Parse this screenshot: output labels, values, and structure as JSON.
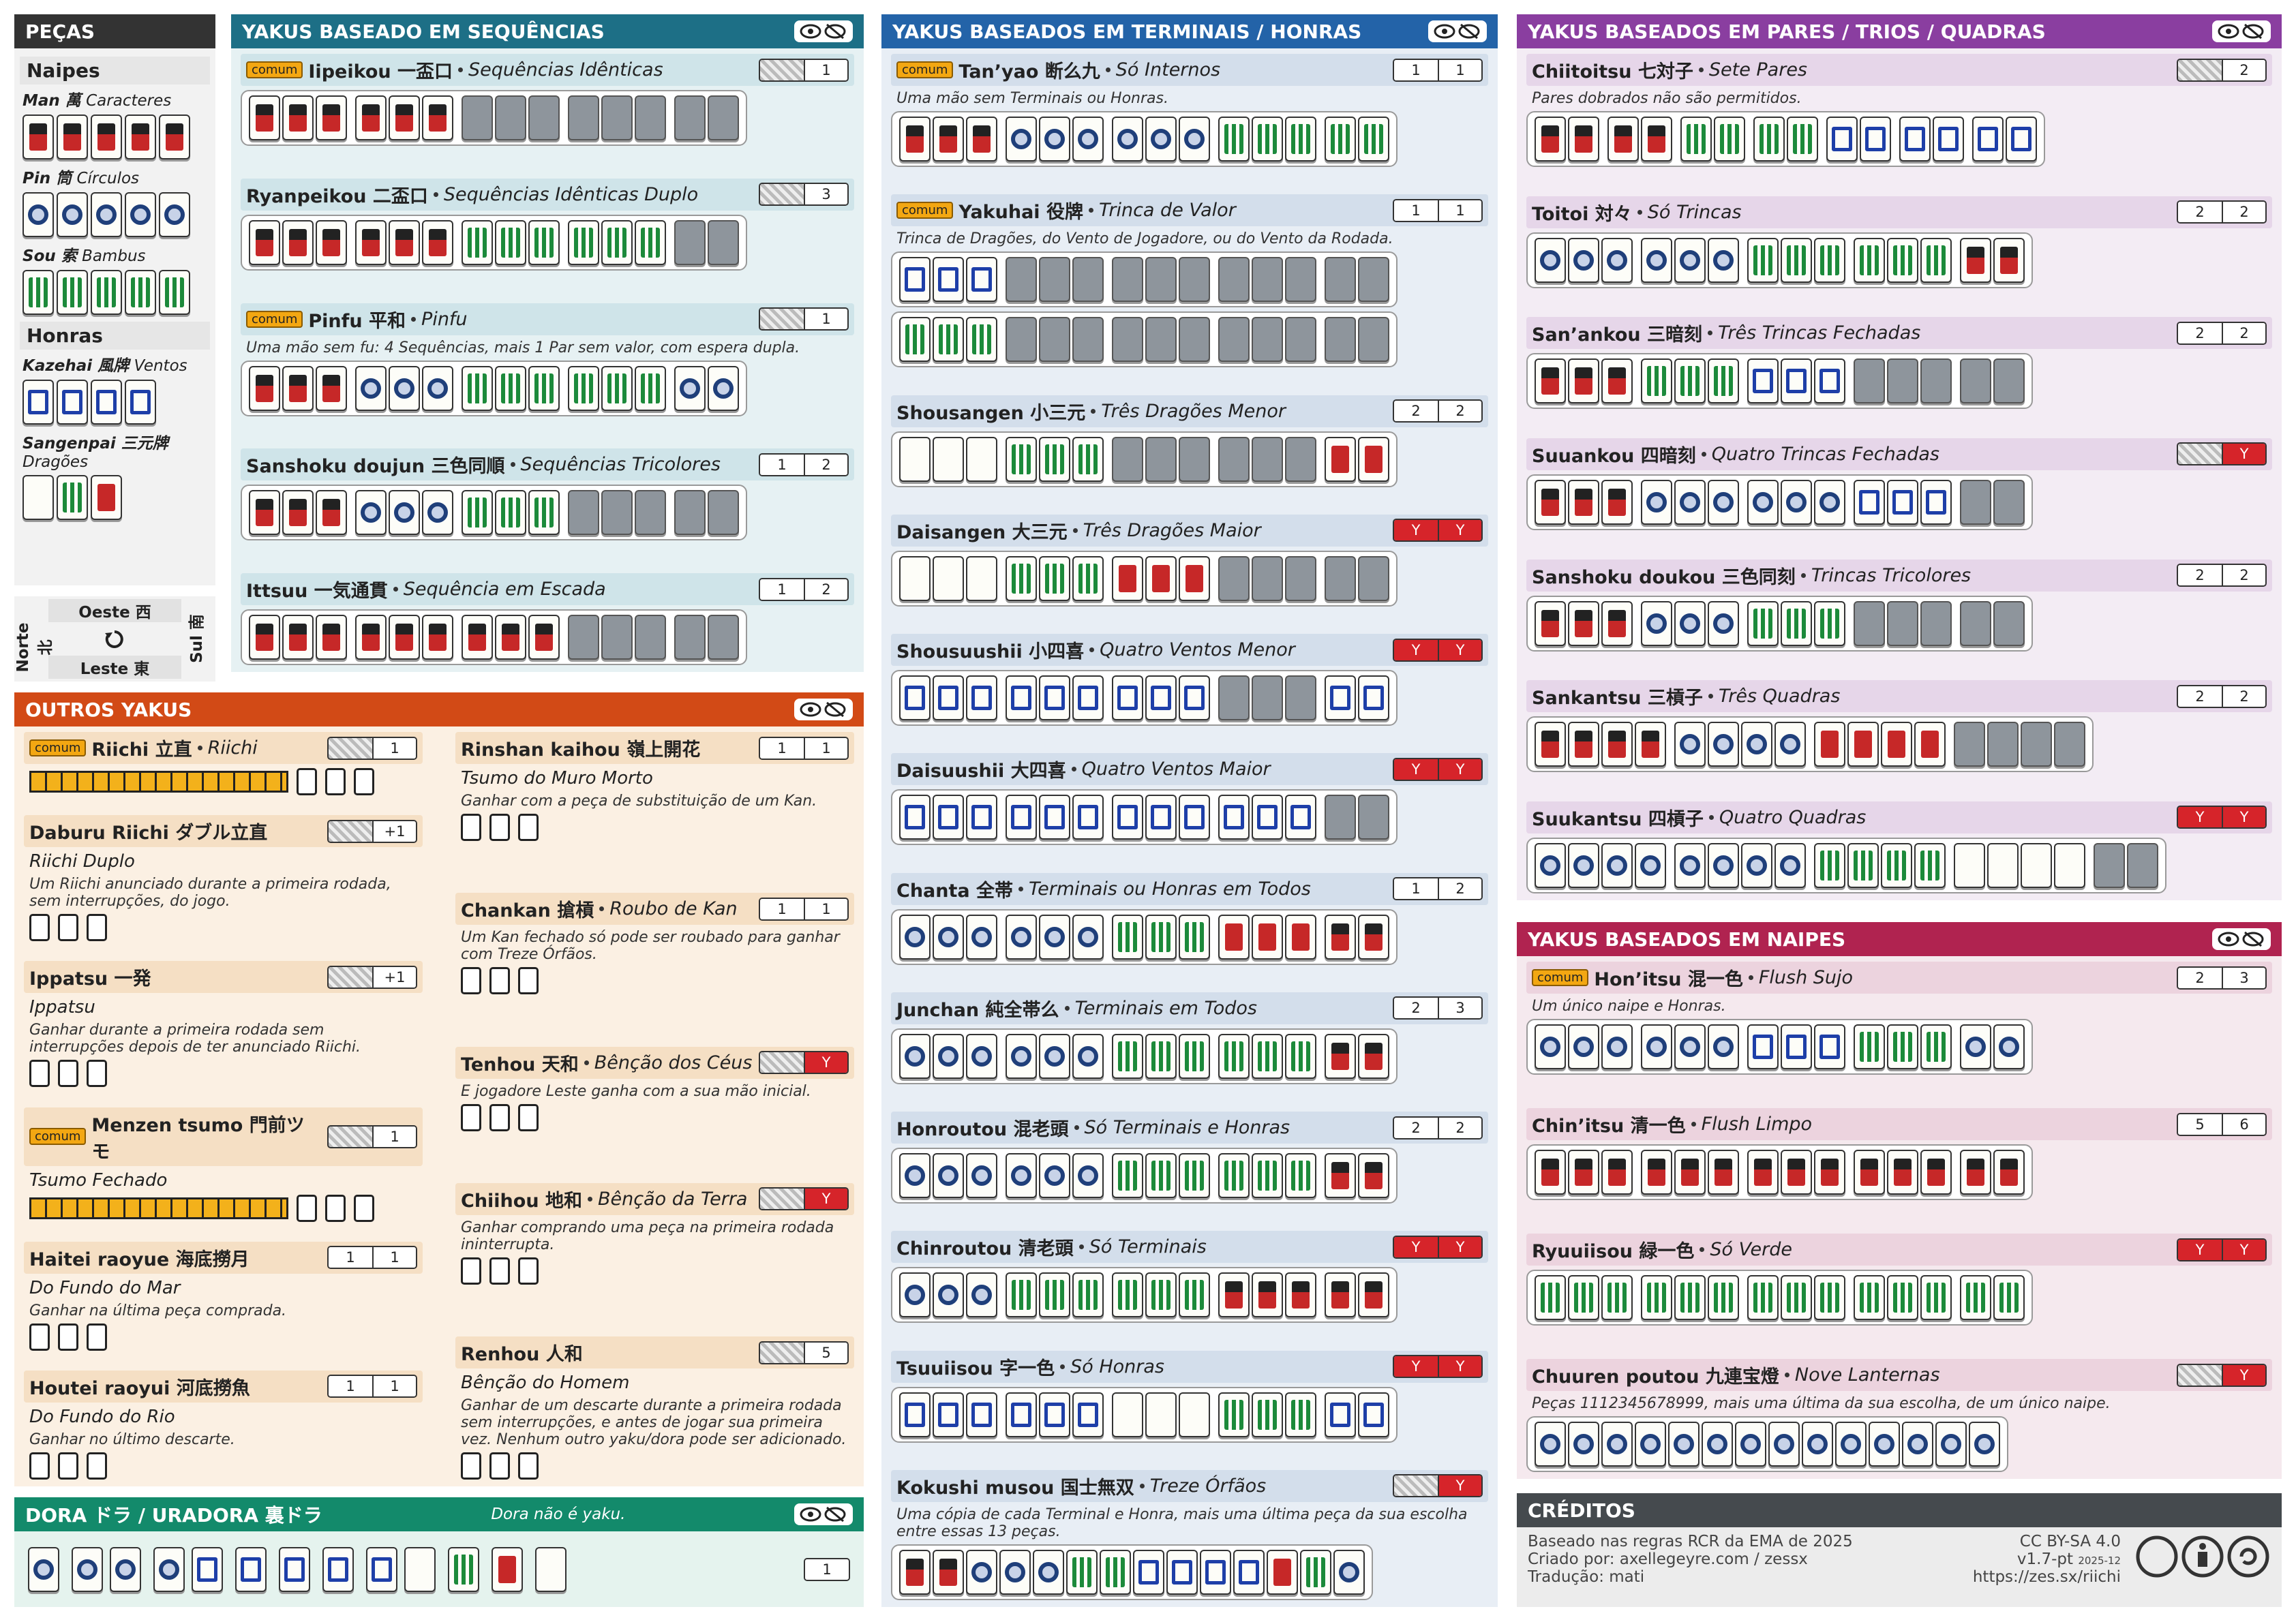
{
  "pieces": {
    "title": "PEÇAS",
    "naipes": "Naipes",
    "man": {
      "name": "Man 萬",
      "desc": "Caracteres"
    },
    "pin": {
      "name": "Pin 筒",
      "desc": "Círculos"
    },
    "sou": {
      "name": "Sou 索",
      "desc": "Bambus"
    },
    "honras": "Honras",
    "kazehai": {
      "name": "Kazehai 風牌",
      "desc": "Ventos"
    },
    "sangenpai": {
      "name": "Sangenpai 三元牌",
      "desc": "Dragões"
    },
    "winds": {
      "west": "Oeste 西",
      "east": "Leste 東",
      "north": "Norte 北",
      "south": "Sul 南"
    }
  },
  "sequences": {
    "title": "YAKUS BASEADO EM SEQUÊNCIAS",
    "yaku": [
      {
        "tag": "comum",
        "name": "Iipeikou 一盃口",
        "trans": "Sequências Idênticas",
        "han": [
          null,
          1
        ]
      },
      {
        "name": "Ryanpeikou 二盃口",
        "trans": "Sequências Idênticas Duplo",
        "han": [
          null,
          3
        ]
      },
      {
        "tag": "comum",
        "name": "Pinfu 平和",
        "trans": "Pinfu",
        "desc": "Uma mão sem fu: 4 Sequências, mais 1 Par sem valor, com espera dupla.",
        "han": [
          null,
          1
        ]
      },
      {
        "name": "Sanshoku doujun 三色同順",
        "trans": "Sequências Tricolores",
        "han": [
          1,
          2
        ]
      },
      {
        "name": "Ittsuu 一気通貫",
        "trans": "Sequência em Escada",
        "han": [
          1,
          2
        ]
      }
    ]
  },
  "terminals": {
    "title": "YAKUS BASEADOS EM TERMINAIS / HONRAS",
    "yaku": [
      {
        "tag": "comum",
        "name": "Tan’yao 断么九",
        "trans": "Só Internos",
        "desc": "Uma mão sem Terminais ou Honras.",
        "han": [
          1,
          1
        ]
      },
      {
        "tag": "comum",
        "name": "Yakuhai 役牌",
        "trans": "Trinca de Valor",
        "desc": "Trinca de Dragões, do Vento de Jogadore, ou do Vento da Rodada.",
        "han": [
          1,
          1
        ]
      },
      {
        "name": "Shousangen 小三元",
        "trans": "Três Dragões Menor",
        "han": [
          2,
          2
        ]
      },
      {
        "name": "Daisangen 大三元",
        "trans": "Três Dragões Maior",
        "han": [
          "Y",
          "Y"
        ]
      },
      {
        "name": "Shousuushii 小四喜",
        "trans": "Quatro Ventos Menor",
        "han": [
          "Y",
          "Y"
        ]
      },
      {
        "name": "Daisuushii 大四喜",
        "trans": "Quatro Ventos Maior",
        "han": [
          "Y",
          "Y"
        ]
      },
      {
        "name": "Chanta 全帯",
        "trans": "Terminais ou Honras em Todos",
        "han": [
          1,
          2
        ]
      },
      {
        "name": "Junchan 純全帯么",
        "trans": "Terminais em Todos",
        "han": [
          2,
          3
        ]
      },
      {
        "name": "Honroutou 混老頭",
        "trans": "Só Terminais e Honras",
        "han": [
          2,
          2
        ]
      },
      {
        "name": "Chinroutou 清老頭",
        "trans": "Só Terminais",
        "han": [
          "Y",
          "Y"
        ]
      },
      {
        "name": "Tsuuiisou 字一色",
        "trans": "Só Honras",
        "han": [
          "Y",
          "Y"
        ]
      },
      {
        "name": "Kokushi musou 国士無双",
        "trans": "Treze Órfãos",
        "desc": "Uma cópia de cada Terminal e Honra, mais uma última peça da sua escolha entre essas 13 peças.",
        "han": [
          null,
          "Y"
        ]
      }
    ]
  },
  "pairs": {
    "title": "YAKUS BASEADOS EM PARES / TRIOS / QUADRAS",
    "yaku": [
      {
        "name": "Chiitoitsu 七対子",
        "trans": "Sete Pares",
        "desc": "Pares dobrados não são permitidos.",
        "han": [
          null,
          2
        ]
      },
      {
        "name": "Toitoi 対々",
        "trans": "Só Trincas",
        "han": [
          2,
          2
        ]
      },
      {
        "name": "San’ankou 三暗刻",
        "trans": "Três Trincas Fechadas",
        "han": [
          2,
          2
        ]
      },
      {
        "name": "Suuankou 四暗刻",
        "trans": "Quatro Trincas Fechadas",
        "han": [
          null,
          "Y"
        ]
      },
      {
        "name": "Sanshoku doukou 三色同刻",
        "trans": "Trincas Tricolores",
        "han": [
          2,
          2
        ]
      },
      {
        "name": "Sankantsu 三槓子",
        "trans": "Três Quadras",
        "han": [
          2,
          2
        ]
      },
      {
        "name": "Suukantsu 四槓子",
        "trans": "Quatro Quadras",
        "han": [
          "Y",
          "Y"
        ]
      }
    ]
  },
  "suits": {
    "title": "YAKUS BASEADOS EM NAIPES",
    "yaku": [
      {
        "tag": "comum",
        "name": "Hon’itsu 混一色",
        "trans": "Flush Sujo",
        "desc": "Um único naipe e Honras.",
        "han": [
          2,
          3
        ]
      },
      {
        "name": "Chin’itsu 清一色",
        "trans": "Flush Limpo",
        "han": [
          5,
          6
        ]
      },
      {
        "name": "Ryuuiisou 緑一色",
        "trans": "Só Verde",
        "han": [
          "Y",
          "Y"
        ]
      },
      {
        "name": "Chuuren poutou 九連宝燈",
        "trans": "Nove Lanternas",
        "desc": "Peças 1112345678999, mais uma última da sua escolha, de um único naipe.",
        "han": [
          null,
          "Y"
        ]
      }
    ]
  },
  "others": {
    "title": "OUTROS YAKUS",
    "left": [
      {
        "tag": "comum",
        "name": "Riichi 立直",
        "trans": "Riichi",
        "han": [
          null,
          1
        ]
      },
      {
        "name": "Daburu Riichi ダブル立直",
        "trans": "Riichi Duplo",
        "desc": "Um Riichi anunciado durante a primeira rodada, sem interrupções, do jogo.",
        "han": [
          null,
          "+1"
        ]
      },
      {
        "name": "Ippatsu 一発",
        "trans": "Ippatsu",
        "desc": "Ganhar durante a primeira rodada sem interrupções depois de ter anunciado Riichi.",
        "han": [
          null,
          "+1"
        ]
      },
      {
        "tag": "comum",
        "name": "Menzen tsumo 門前ツモ",
        "trans": "Tsumo Fechado",
        "han": [
          null,
          1
        ]
      },
      {
        "name": "Haitei raoyue 海底撈月",
        "trans": "Do Fundo do Mar",
        "desc": "Ganhar na última peça comprada.",
        "han": [
          1,
          1
        ]
      },
      {
        "name": "Houtei raoyui 河底撈魚",
        "trans": "Do Fundo do Rio",
        "desc": "Ganhar no último descarte.",
        "han": [
          1,
          1
        ]
      }
    ],
    "right": [
      {
        "name": "Rinshan kaihou 嶺上開花",
        "trans": "Tsumo do Muro Morto",
        "desc": "Ganhar com a peça de substituição de um Kan.",
        "han": [
          1,
          1
        ]
      },
      {
        "name": "Chankan 搶槓",
        "trans": "Roubo de Kan",
        "desc": "Um Kan fechado só pode ser roubado para ganhar com Treze Órfãos.",
        "han": [
          1,
          1
        ]
      },
      {
        "name": "Tenhou 天和",
        "trans": "Bênção dos Céus",
        "desc": "E jogadore Leste ganha com a sua mão inicial.",
        "han": [
          null,
          "Y"
        ]
      },
      {
        "name": "Chiihou 地和",
        "trans": "Bênção da Terra",
        "desc": "Ganhar comprando uma peça na primeira rodada ininterrupta.",
        "han": [
          null,
          "Y"
        ]
      },
      {
        "name": "Renhou 人和",
        "trans": "Bênção do Homem",
        "desc": "Ganhar de um descarte durante a primeira rodada sem interrupções, e antes de jogar sua primeira vez. Nenhum outro yaku/dora pode ser adicionado.",
        "han": [
          null,
          5
        ]
      }
    ]
  },
  "dora": {
    "title": "DORA ドラ / URADORA 裏ドラ",
    "note": "Dora não é yaku.",
    "han": 1
  },
  "credits": {
    "title": "CRÉDITOS",
    "based": "Baseado nas regras RCR da EMA de 2025",
    "created": "Criado por: axellegeyre.com / zessx",
    "translation": "Tradução: mati",
    "license": "CC BY-SA 4.0",
    "version": "v1.7-pt",
    "date": "2025-12",
    "url": "https://zes.sx/riichi"
  }
}
